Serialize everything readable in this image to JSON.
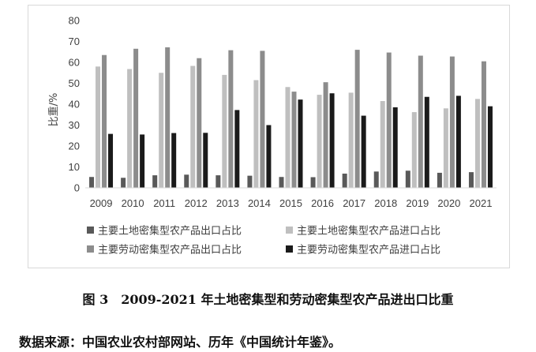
{
  "figure": {
    "number": "图 3",
    "caption": "2009-2021 年土地密集型和劳动密集型农产品进出口比重",
    "source": "数据来源：中国农业农村部网站、历年《中国统计年鉴》。"
  },
  "chart_data": {
    "type": "bar",
    "ylabel": "比重/%",
    "ylim": [
      0,
      80
    ],
    "yticks": [
      0,
      10,
      20,
      30,
      40,
      50,
      60,
      70,
      80
    ],
    "grid": false,
    "legend_position": "bottom",
    "categories": [
      "2009",
      "2010",
      "2011",
      "2012",
      "2013",
      "2014",
      "2015",
      "2016",
      "2017",
      "2018",
      "2019",
      "2020",
      "2021"
    ],
    "series": [
      {
        "name": "主要土地密集型农产品出口占比",
        "color": "#595959",
        "values": [
          5.2,
          4.8,
          6.0,
          6.3,
          6.0,
          5.8,
          5.2,
          5.1,
          6.8,
          7.8,
          8.2,
          7.2,
          7.5
        ]
      },
      {
        "name": "主要土地密集型农产品进口占比",
        "color": "#bfbfbf",
        "values": [
          58.0,
          56.8,
          55.0,
          58.3,
          54.0,
          51.5,
          48.2,
          44.5,
          45.5,
          41.5,
          36.2,
          38.0,
          42.5
        ]
      },
      {
        "name": "主要劳动密集型农产品出口占比",
        "color": "#8c8c8c",
        "values": [
          63.5,
          66.5,
          67.2,
          62.0,
          65.8,
          65.5,
          46.0,
          50.5,
          66.0,
          64.7,
          63.2,
          62.8,
          60.5
        ]
      },
      {
        "name": "主要劳动密集型农产品进口占比",
        "color": "#1a1a1a",
        "values": [
          25.8,
          25.5,
          26.2,
          26.3,
          37.2,
          30.0,
          42.2,
          45.2,
          34.5,
          38.5,
          43.5,
          44.0,
          39.0
        ]
      }
    ]
  }
}
